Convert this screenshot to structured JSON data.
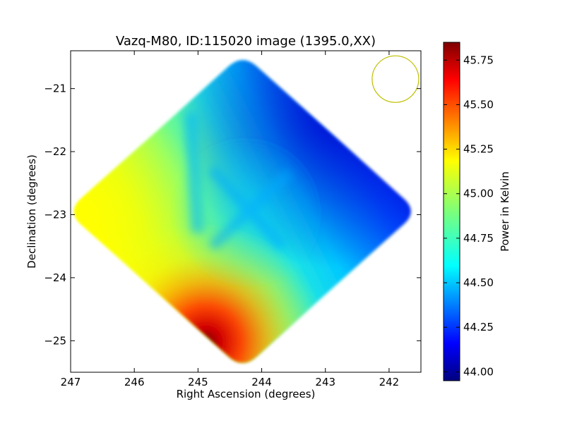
{
  "chart_data": {
    "type": "heatmap",
    "title": "Vazq-M80, ID:115020 image (1395.0,XX)",
    "xlabel": "Right Ascension (degrees)",
    "ylabel": "Declination (degrees)",
    "xlim": [
      247.0,
      241.5
    ],
    "ylim": [
      -25.5,
      -20.4
    ],
    "x_ticks": [
      247,
      246,
      245,
      244,
      243,
      242
    ],
    "x_tick_labels": [
      "247",
      "246",
      "245",
      "244",
      "243",
      "242"
    ],
    "y_ticks": [
      -21,
      -22,
      -23,
      -24,
      -25
    ],
    "y_tick_labels": [
      "−21",
      "−22",
      "−23",
      "−24",
      "−25"
    ],
    "footprint": {
      "shape": "diamond",
      "center_ra": 244.3,
      "center_dec": -22.95,
      "half_width_deg": 2.75,
      "half_height_deg": 2.5
    },
    "value_samples": [
      {
        "ra": 244.3,
        "dec": -20.6,
        "value": 44.1
      },
      {
        "ra": 241.9,
        "dec": -22.9,
        "value": 44.0
      },
      {
        "ra": 245.5,
        "dec": -21.7,
        "value": 44.75
      },
      {
        "ra": 246.9,
        "dec": -22.9,
        "value": 45.15
      },
      {
        "ra": 244.3,
        "dec": -22.9,
        "value": 44.6
      },
      {
        "ra": 243.2,
        "dec": -24.2,
        "value": 44.6
      },
      {
        "ra": 244.9,
        "dec": -25.05,
        "value": 45.82
      },
      {
        "ra": 244.6,
        "dec": -25.3,
        "value": 45.5
      }
    ],
    "beam": {
      "shape": "circle",
      "center_ra": 241.9,
      "center_dec": -20.85,
      "color": "#bfbf00"
    },
    "colorbar": {
      "label": "Power in Kelvin",
      "min": 43.95,
      "max": 45.85,
      "ticks": [
        44.0,
        44.25,
        44.5,
        44.75,
        45.0,
        45.25,
        45.5,
        45.75
      ],
      "tick_labels": [
        "44.00",
        "44.25",
        "44.50",
        "44.75",
        "45.00",
        "45.25",
        "45.50",
        "45.75"
      ],
      "colormap": "jet"
    }
  }
}
